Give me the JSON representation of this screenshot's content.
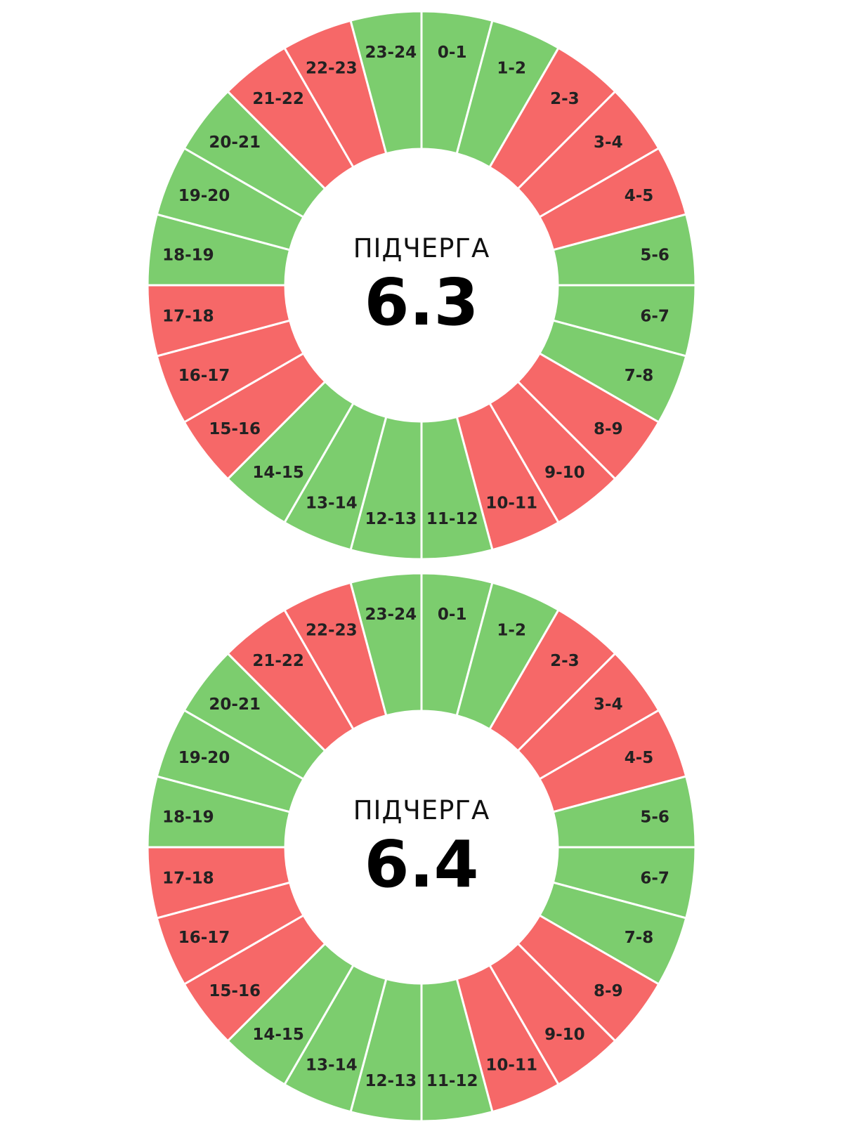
{
  "colors": {
    "on": "#7ccd6e",
    "off": "#f66868",
    "separator": "#ffffff",
    "center": "#ffffff"
  },
  "legend_colors": {
    "on_meaning": "green",
    "off_meaning": "red"
  },
  "wheels": [
    {
      "caption": "ПІДЧЕРГА",
      "number": "6.3",
      "hours": [
        {
          "label": "0-1",
          "state": "on"
        },
        {
          "label": "1-2",
          "state": "on"
        },
        {
          "label": "2-3",
          "state": "off"
        },
        {
          "label": "3-4",
          "state": "off"
        },
        {
          "label": "4-5",
          "state": "off"
        },
        {
          "label": "5-6",
          "state": "on"
        },
        {
          "label": "6-7",
          "state": "on"
        },
        {
          "label": "7-8",
          "state": "on"
        },
        {
          "label": "8-9",
          "state": "off"
        },
        {
          "label": "9-10",
          "state": "off"
        },
        {
          "label": "10-11",
          "state": "off"
        },
        {
          "label": "11-12",
          "state": "on"
        },
        {
          "label": "12-13",
          "state": "on"
        },
        {
          "label": "13-14",
          "state": "on"
        },
        {
          "label": "14-15",
          "state": "on"
        },
        {
          "label": "15-16",
          "state": "off"
        },
        {
          "label": "16-17",
          "state": "off"
        },
        {
          "label": "17-18",
          "state": "off"
        },
        {
          "label": "18-19",
          "state": "on"
        },
        {
          "label": "19-20",
          "state": "on"
        },
        {
          "label": "20-21",
          "state": "on"
        },
        {
          "label": "21-22",
          "state": "off"
        },
        {
          "label": "22-23",
          "state": "off"
        },
        {
          "label": "23-24",
          "state": "on"
        }
      ]
    },
    {
      "caption": "ПІДЧЕРГА",
      "number": "6.4",
      "hours": [
        {
          "label": "0-1",
          "state": "on"
        },
        {
          "label": "1-2",
          "state": "on"
        },
        {
          "label": "2-3",
          "state": "off"
        },
        {
          "label": "3-4",
          "state": "off"
        },
        {
          "label": "4-5",
          "state": "off"
        },
        {
          "label": "5-6",
          "state": "on"
        },
        {
          "label": "6-7",
          "state": "on"
        },
        {
          "label": "7-8",
          "state": "on"
        },
        {
          "label": "8-9",
          "state": "off"
        },
        {
          "label": "9-10",
          "state": "off"
        },
        {
          "label": "10-11",
          "state": "off"
        },
        {
          "label": "11-12",
          "state": "on"
        },
        {
          "label": "12-13",
          "state": "on"
        },
        {
          "label": "13-14",
          "state": "on"
        },
        {
          "label": "14-15",
          "state": "on"
        },
        {
          "label": "15-16",
          "state": "off"
        },
        {
          "label": "16-17",
          "state": "off"
        },
        {
          "label": "17-18",
          "state": "off"
        },
        {
          "label": "18-19",
          "state": "on"
        },
        {
          "label": "19-20",
          "state": "on"
        },
        {
          "label": "20-21",
          "state": "on"
        },
        {
          "label": "21-22",
          "state": "off"
        },
        {
          "label": "22-23",
          "state": "off"
        },
        {
          "label": "23-24",
          "state": "on"
        }
      ]
    }
  ]
}
